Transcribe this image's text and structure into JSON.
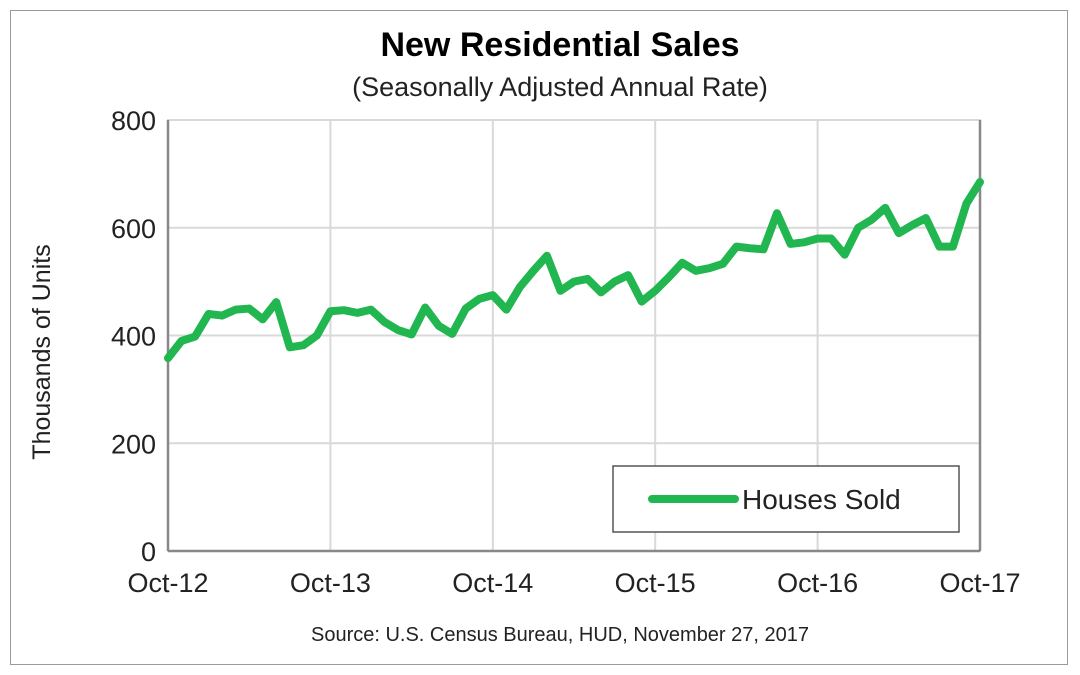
{
  "chart_data": {
    "type": "line",
    "title": "New Residential Sales",
    "subtitle": "(Seasonally Adjusted Annual Rate)",
    "xlabel": "",
    "ylabel": "Thousands of Units",
    "ylim": [
      0,
      800
    ],
    "yticks": [
      "0",
      "200",
      "400",
      "600",
      "800"
    ],
    "xticks": [
      "Oct-12",
      "Oct-13",
      "Oct-14",
      "Oct-15",
      "Oct-16",
      "Oct-17"
    ],
    "grid": true,
    "legend_position": "bottom-right",
    "source": "Source:  U.S. Census Bureau, HUD, November 27, 2017",
    "series": [
      {
        "name": "Houses Sold",
        "color": "#22b650",
        "x_start": "Oct-12",
        "x_end": "Oct-17",
        "frequency": "monthly",
        "values": [
          358,
          390,
          398,
          440,
          437,
          448,
          450,
          430,
          462,
          378,
          382,
          400,
          445,
          447,
          442,
          448,
          425,
          410,
          402,
          452,
          418,
          403,
          450,
          468,
          475,
          448,
          490,
          520,
          548,
          483,
          500,
          505,
          480,
          500,
          512,
          463,
          483,
          508,
          535,
          520,
          525,
          533,
          565,
          562,
          560,
          627,
          570,
          573,
          580,
          580,
          550,
          600,
          615,
          637,
          590,
          605,
          618,
          565,
          565,
          645,
          685
        ]
      }
    ]
  }
}
